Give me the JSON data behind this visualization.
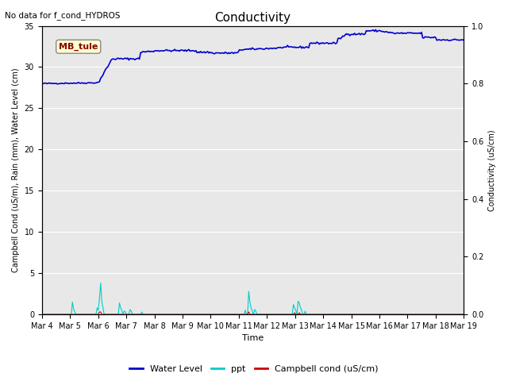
{
  "title": "Conductivity",
  "top_left_text": "No data for f_cond_HYDROS",
  "ylabel_left": "Campbell Cond (uS/m), Rain (mm), Water Level (cm)",
  "ylabel_right": "Conductivity (uS/cm)",
  "xlabel": "Time",
  "ylim_left": [
    0,
    35
  ],
  "ylim_right": [
    0,
    1.0
  ],
  "yticks_left": [
    0,
    5,
    10,
    15,
    20,
    25,
    30,
    35
  ],
  "yticks_right": [
    0.0,
    0.2,
    0.4,
    0.6,
    0.8,
    1.0
  ],
  "background_color": "#e8e8e8",
  "legend_labels": [
    "Water Level",
    "ppt",
    "Campbell cond (uS/cm)"
  ],
  "legend_colors": [
    "#0000cc",
    "#00cccc",
    "#cc0000"
  ],
  "annotation_box_text": "MB_tule",
  "annotation_box_facecolor": "#ffffd0",
  "annotation_box_edgecolor": "#888888",
  "annotation_box_textcolor": "#880000",
  "xtick_labels": [
    "Mar 4",
    "Mar 5",
    "Mar 6",
    "Mar 7",
    "Mar 8",
    "Mar 9",
    "Mar 10",
    "Mar 11",
    "Mar 12",
    "Mar 13",
    "Mar 14",
    "Mar 15",
    "Mar 16",
    "Mar 17",
    "Mar 18",
    "Mar 19"
  ]
}
